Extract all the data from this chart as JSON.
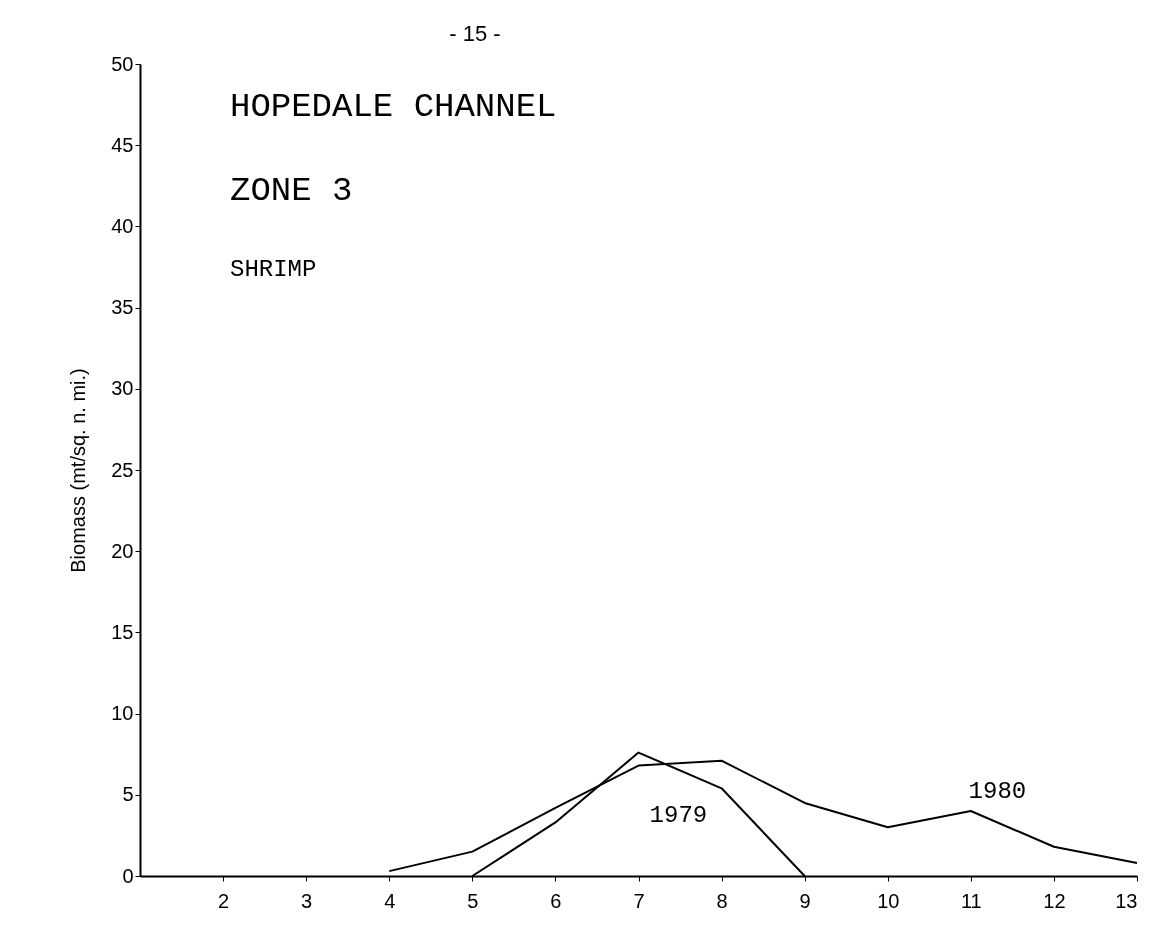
{
  "chart_data": {
    "type": "line",
    "title": "HOPEDALE CHANNEL",
    "subtitle": "ZONE 3",
    "annotations": [
      "SHRIMP",
      "- 15 -"
    ],
    "ylabel": "Biomass (mt/sq. n. mi.)",
    "xlim": [
      1,
      13
    ],
    "xticks": [
      2,
      3,
      4,
      5,
      6,
      7,
      8,
      9,
      10,
      11,
      12,
      13
    ],
    "ylim": [
      0,
      50
    ],
    "yticks": [
      0,
      5,
      10,
      15,
      20,
      25,
      30,
      35,
      40,
      45,
      50
    ],
    "grid": false,
    "marker": "none",
    "line_style": "solid",
    "series": [
      {
        "name": "1979",
        "color": "#000000",
        "x": [
          5,
          6,
          7,
          8,
          9
        ],
        "values": [
          0,
          3.3,
          7.6,
          5.4,
          0
        ]
      },
      {
        "name": "1980",
        "color": "#000000",
        "x": [
          4,
          5,
          6,
          7,
          8,
          9,
          10,
          11,
          12,
          13
        ],
        "values": [
          0.3,
          1.5,
          4.2,
          6.8,
          7.1,
          4.5,
          3.0,
          4.0,
          1.8,
          0.8
        ]
      }
    ]
  }
}
